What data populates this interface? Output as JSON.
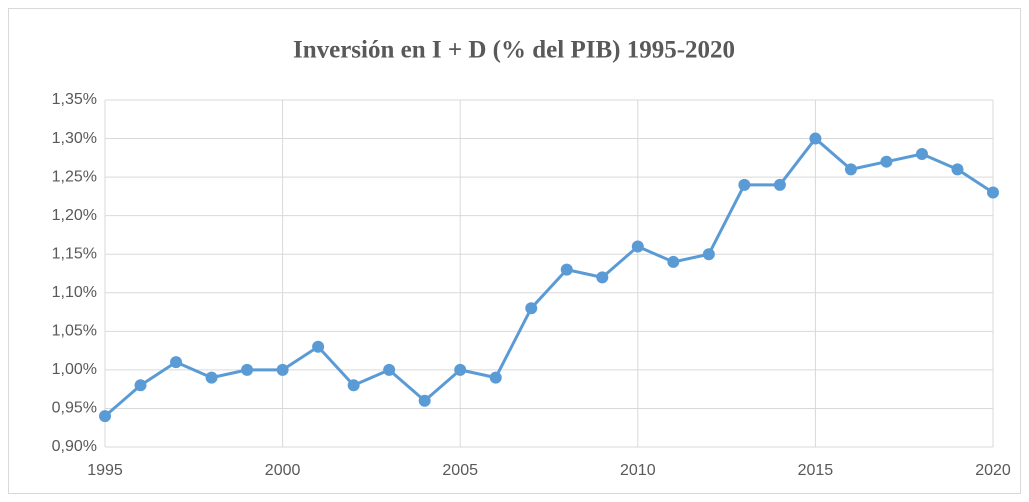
{
  "chart_data": {
    "type": "line",
    "title": "Inversión en I + D (% del PIB) 1995-2020",
    "x": [
      1995,
      1996,
      1997,
      1998,
      1999,
      2000,
      2001,
      2002,
      2003,
      2004,
      2005,
      2006,
      2007,
      2008,
      2009,
      2010,
      2011,
      2012,
      2013,
      2014,
      2015,
      2016,
      2017,
      2018,
      2019,
      2020
    ],
    "series": [
      {
        "name": "Inversión en I + D",
        "color": "#5b9bd5",
        "values": [
          0.94,
          0.98,
          1.01,
          0.99,
          1.0,
          1.0,
          1.03,
          0.98,
          1.0,
          0.96,
          1.0,
          0.99,
          1.08,
          1.13,
          1.12,
          1.16,
          1.14,
          1.15,
          1.24,
          1.24,
          1.3,
          1.26,
          1.27,
          1.28,
          1.26,
          1.23
        ]
      }
    ],
    "xlim": [
      1995,
      2020
    ],
    "xticks": [
      1995,
      2000,
      2005,
      2010,
      2015,
      2020
    ],
    "ylim": [
      0.9,
      1.35
    ],
    "yticks": [
      {
        "value": 0.9,
        "label": "0,90%"
      },
      {
        "value": 0.95,
        "label": "0,95%"
      },
      {
        "value": 1.0,
        "label": "1,00%"
      },
      {
        "value": 1.05,
        "label": "1,05%"
      },
      {
        "value": 1.1,
        "label": "1,10%"
      },
      {
        "value": 1.15,
        "label": "1,15%"
      },
      {
        "value": 1.2,
        "label": "1,20%"
      },
      {
        "value": 1.25,
        "label": "1,25%"
      },
      {
        "value": 1.3,
        "label": "1,30%"
      },
      {
        "value": 1.35,
        "label": "1,35%"
      }
    ],
    "grid": true
  }
}
